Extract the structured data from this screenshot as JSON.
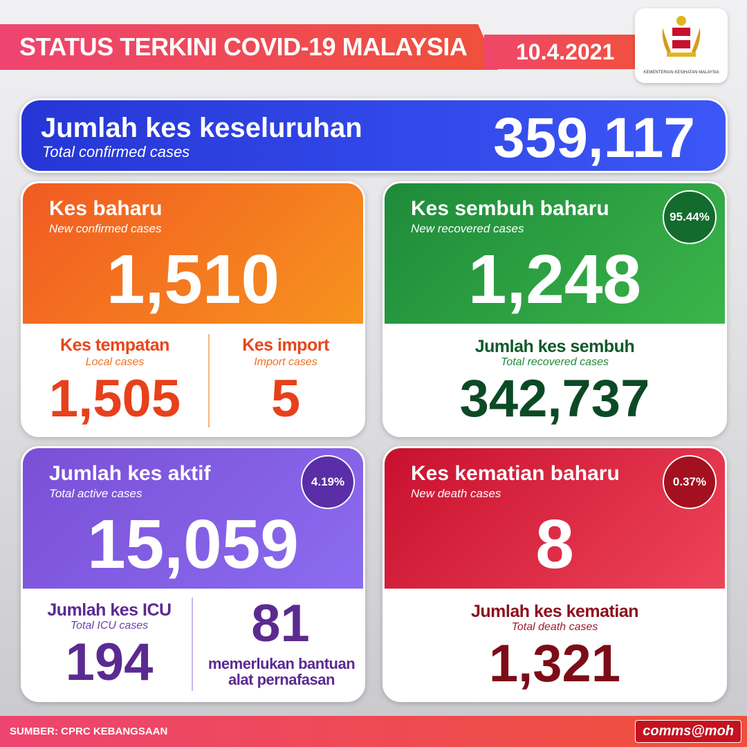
{
  "header": {
    "title": "STATUS TERKINI COVID-19 MALAYSIA",
    "date": "10.4.2021",
    "logo_text": "KEMENTERIAN KESIHATAN MALAYSIA"
  },
  "total": {
    "title": "Jumlah kes keseluruhan",
    "subtitle": "Total confirmed cases",
    "value": "359,117"
  },
  "new_cases": {
    "title": "Kes baharu",
    "subtitle": "New confirmed cases",
    "value": "1,510",
    "local_label": "Kes tempatan",
    "local_sub": "Local cases",
    "local_value": "1,505",
    "import_label": "Kes import",
    "import_sub": "Import cases",
    "import_value": "5"
  },
  "recovered": {
    "title": "Kes sembuh baharu",
    "subtitle": "New recovered cases",
    "value": "1,248",
    "percent": "95.44%",
    "total_label": "Jumlah kes sembuh",
    "total_sub": "Total recovered cases",
    "total_value": "342,737"
  },
  "active": {
    "title": "Jumlah kes aktif",
    "subtitle": "Total active cases",
    "value": "15,059",
    "percent": "4.19%",
    "icu_label": "Jumlah kes ICU",
    "icu_sub": "Total ICU cases",
    "icu_value": "194",
    "vent_value": "81",
    "vent_label": "memerlukan bantuan alat pernafasan"
  },
  "deaths": {
    "title": "Kes kematian baharu",
    "subtitle": "New death cases",
    "value": "8",
    "percent": "0.37%",
    "total_label": "Jumlah kes kematian",
    "total_sub": "Total death cases",
    "total_value": "1,321"
  },
  "footer": {
    "source": "SUMBER: CPRC KEBANGSAAN",
    "brand": "comms@moh"
  },
  "colors": {
    "orange": "#f26a1b",
    "green": "#27a844",
    "purple": "#6a4fd8",
    "red": "#d8213a",
    "blue": "#2d40e0"
  }
}
